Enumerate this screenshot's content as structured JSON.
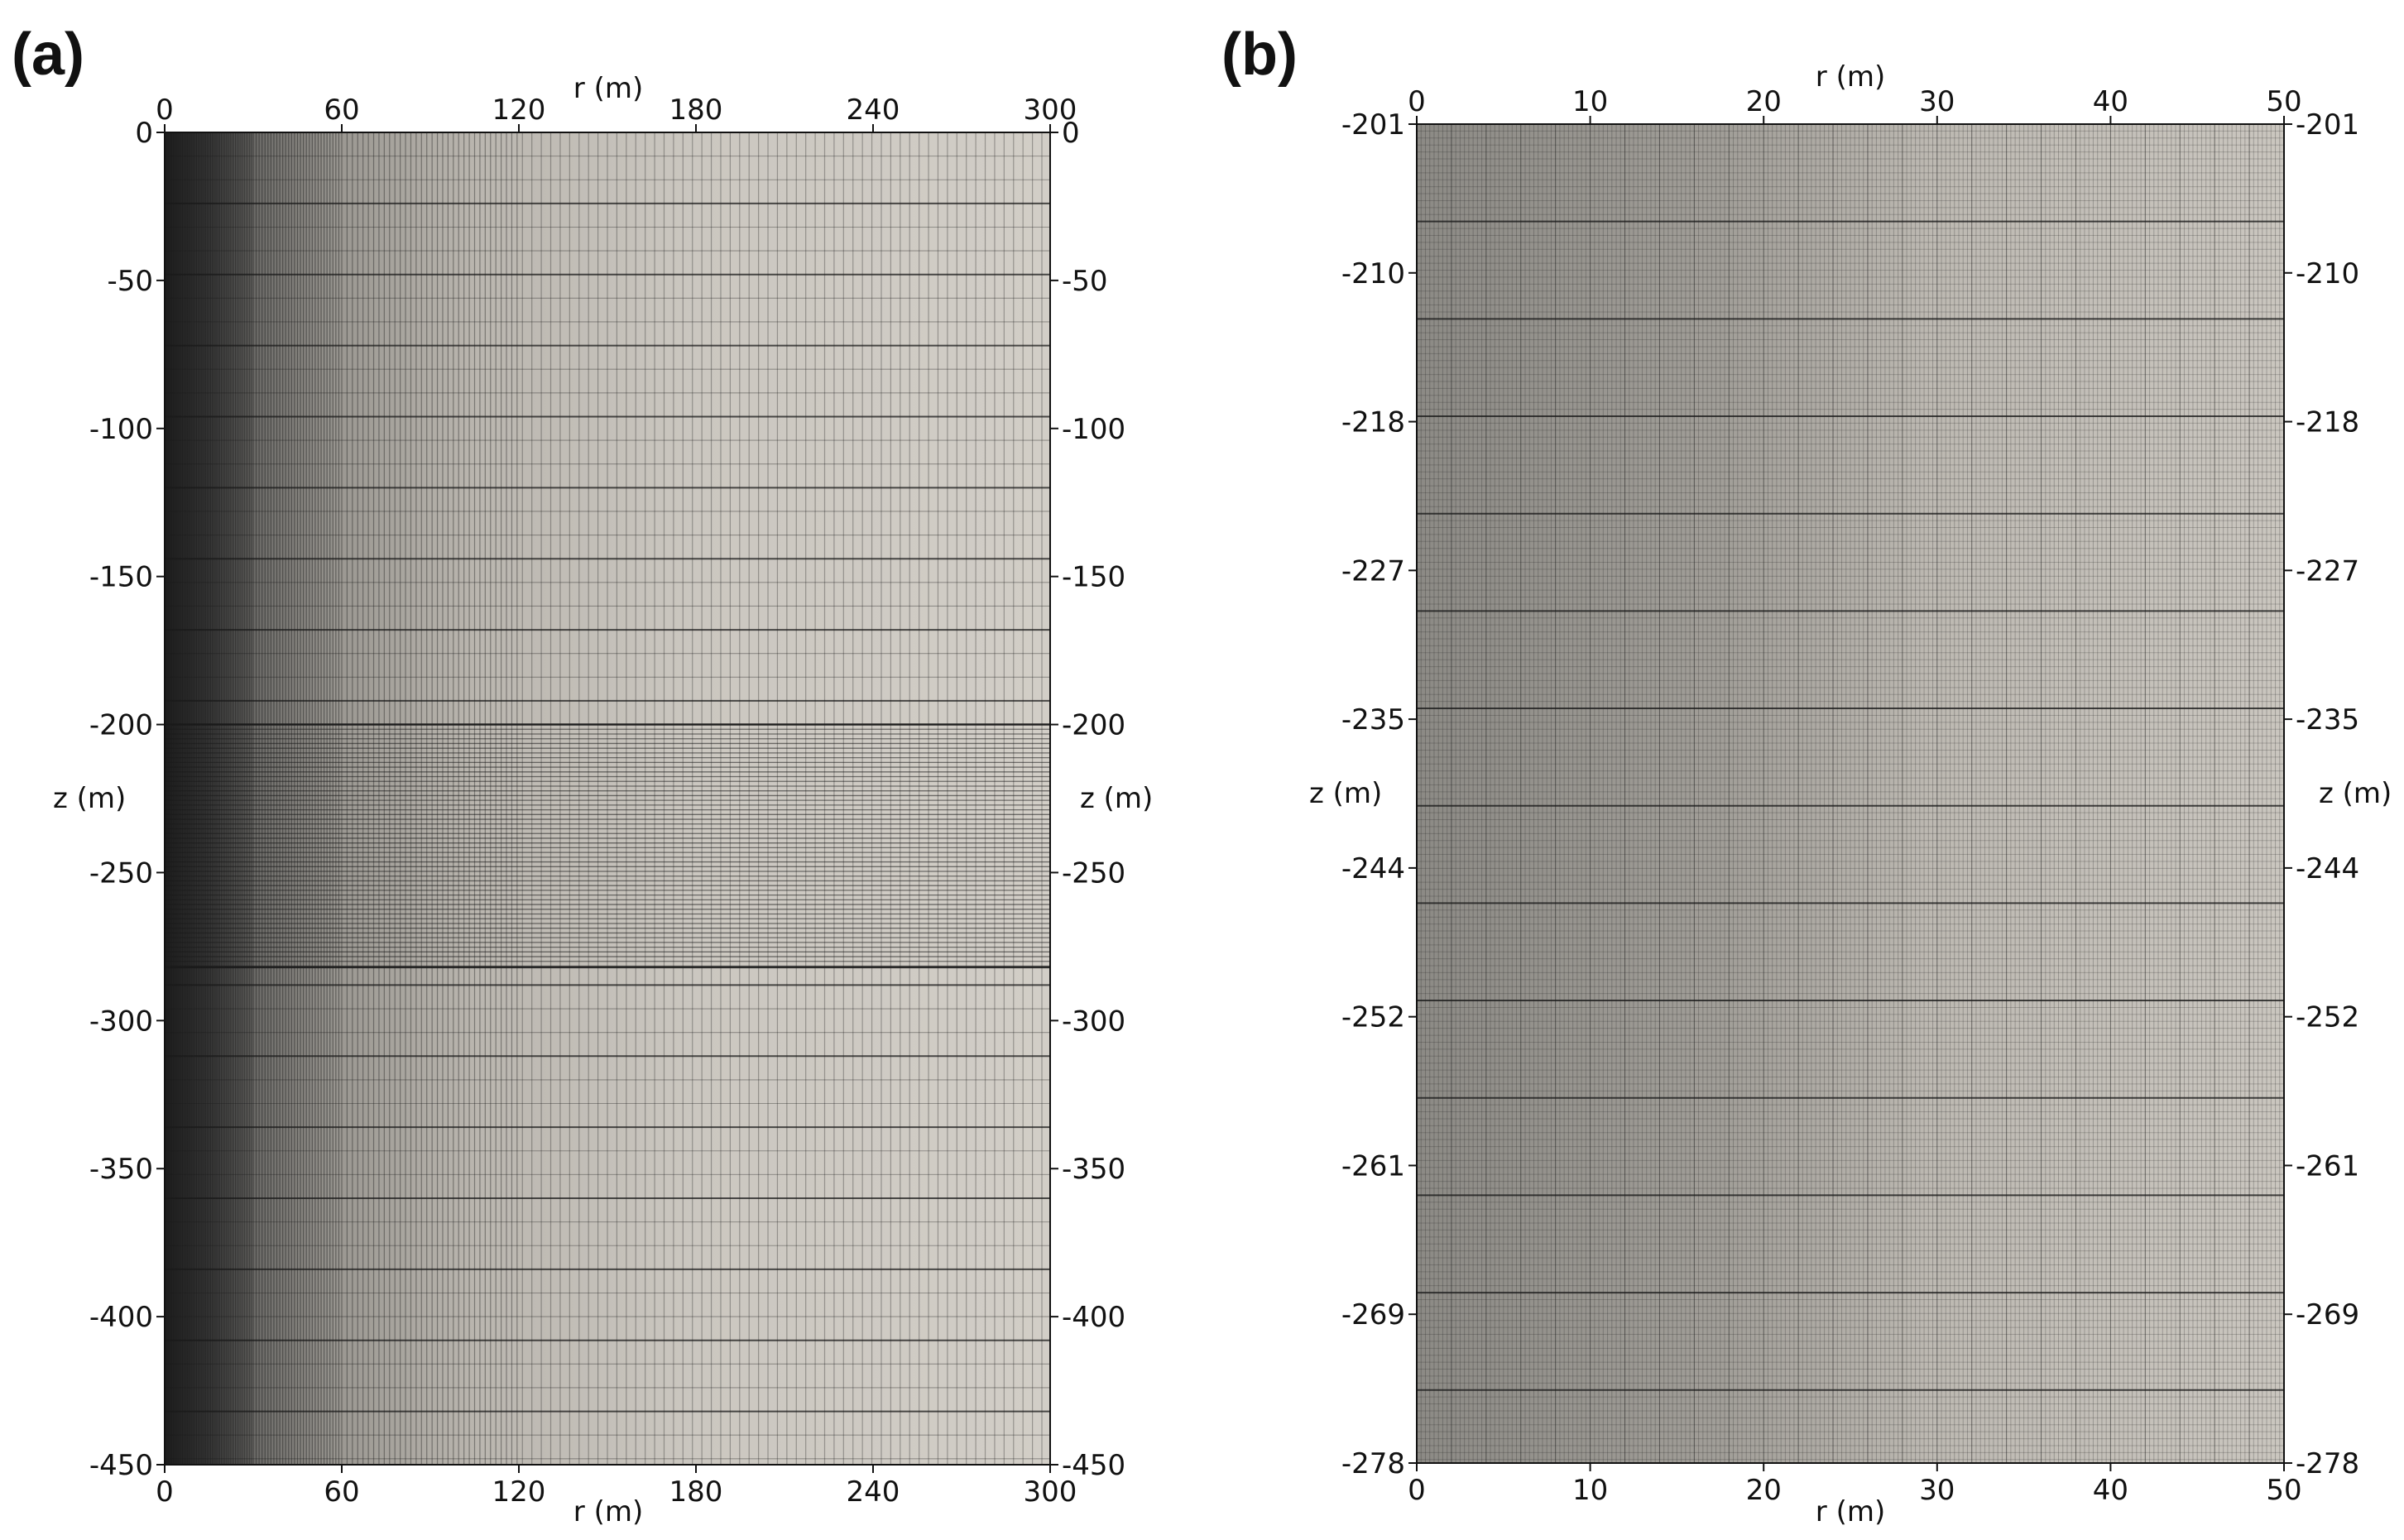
{
  "figure": {
    "panels": [
      {
        "label": "(a)",
        "xlabel": "r (m)",
        "ylabel": "z (m)",
        "x_ticks": [
          "0",
          "60",
          "120",
          "180",
          "240",
          "300"
        ],
        "y_ticks": [
          "0",
          "-50",
          "-100",
          "-150",
          "-200",
          "-250",
          "-300",
          "-350",
          "-400",
          "-450"
        ],
        "xlim": [
          0,
          300
        ],
        "ylim": [
          -450,
          0
        ],
        "refined_band_z": [
          -200,
          -282
        ]
      },
      {
        "label": "(b)",
        "xlabel": "r (m)",
        "ylabel": "z (m)",
        "x_ticks": [
          "0",
          "10",
          "20",
          "30",
          "40",
          "50"
        ],
        "y_ticks": [
          "-201",
          "-210",
          "-218",
          "-227",
          "-235",
          "-244",
          "-252",
          "-261",
          "-269",
          "-278"
        ],
        "xlim": [
          0,
          50
        ],
        "ylim": [
          -278,
          -201
        ]
      }
    ],
    "colors": {
      "mesh_background": "#cfcbc4",
      "mesh_lines": "#1a1a1a",
      "axis": "#111111"
    }
  }
}
